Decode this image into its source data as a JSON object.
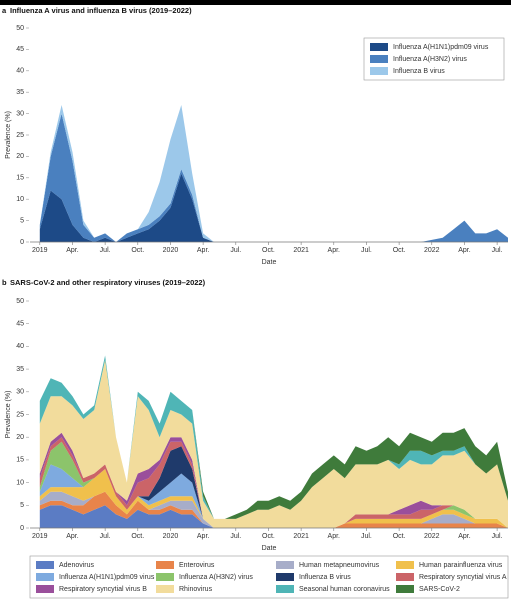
{
  "chart_data": [
    {
      "type": "area",
      "panel_label": "a",
      "title": "Influenza A virus and influenza B virus (2019–2022)",
      "xlabel": "Date",
      "ylabel": "Prevalence (%)",
      "stacked": true,
      "legend": "upper right",
      "x": [
        0,
        1,
        2,
        3,
        4,
        5,
        6,
        7,
        8,
        9,
        10,
        11,
        12,
        13,
        14,
        15,
        16,
        17,
        18,
        19,
        20,
        21,
        22,
        23,
        24,
        25,
        26,
        27,
        28,
        29,
        30,
        31,
        32,
        33,
        34,
        35,
        36,
        37,
        38,
        39,
        40,
        41,
        42,
        43
      ],
      "xlim": [
        -0.9,
        43
      ],
      "xticks": [
        {
          "value": 0,
          "label": "2019"
        },
        {
          "value": 3,
          "label": "Apr."
        },
        {
          "value": 6,
          "label": "Jul."
        },
        {
          "value": 9,
          "label": "Oct."
        },
        {
          "value": 12,
          "label": "2020"
        },
        {
          "value": 15,
          "label": "Apr."
        },
        {
          "value": 18,
          "label": "Jul."
        },
        {
          "value": 21,
          "label": "Oct."
        },
        {
          "value": 24,
          "label": "2021"
        },
        {
          "value": 27,
          "label": "Apr."
        },
        {
          "value": 30,
          "label": "Jul."
        },
        {
          "value": 33,
          "label": "Oct."
        },
        {
          "value": 36,
          "label": "2022"
        },
        {
          "value": 39,
          "label": "Apr."
        },
        {
          "value": 42,
          "label": "Jul."
        }
      ],
      "ylim": [
        0,
        50
      ],
      "yticks": [
        0,
        5,
        10,
        15,
        20,
        25,
        30,
        35,
        40,
        45,
        50
      ],
      "series": [
        {
          "name": "Influenza A(H1N1)pdm09 virus",
          "color": "#1d4a87",
          "values": [
            3,
            12,
            10,
            4,
            1,
            0,
            1,
            0,
            1,
            2,
            3,
            5,
            8,
            16,
            10,
            1,
            0,
            0,
            0,
            0,
            0,
            0,
            0,
            0,
            0,
            0,
            0,
            0,
            0,
            0,
            0,
            0,
            0,
            0,
            0,
            0,
            0,
            0,
            0,
            0,
            0,
            0,
            0,
            0
          ]
        },
        {
          "name": "Influenza A(H3N2) virus",
          "color": "#4a80bf",
          "values": [
            1,
            8,
            20,
            15,
            3,
            1,
            1,
            0,
            1,
            1,
            1,
            1,
            1,
            1,
            1,
            0,
            0,
            0,
            0,
            0,
            0,
            0,
            0,
            0,
            0,
            0,
            0,
            0,
            0,
            0,
            0,
            0,
            0,
            0,
            0,
            0,
            0.5,
            1,
            3,
            5,
            2,
            2,
            3,
            1
          ]
        },
        {
          "name": "Influenza B virus",
          "color": "#9cc8ea",
          "values": [
            0,
            1,
            2,
            2,
            1,
            0,
            0,
            0,
            0,
            0,
            3,
            8,
            15,
            15,
            5,
            1,
            0,
            0,
            0,
            0,
            0,
            0,
            0,
            0,
            0,
            0,
            0,
            0,
            0,
            0,
            0,
            0,
            0,
            0,
            0,
            0,
            0,
            0,
            0,
            0,
            0,
            0,
            0,
            0
          ]
        }
      ]
    },
    {
      "type": "area",
      "panel_label": "b",
      "title": "SARS-CoV-2 and other respiratory viruses (2019–2022)",
      "xlabel": "Date",
      "ylabel": "Prevalence (%)",
      "stacked": true,
      "legend": "below",
      "x": [
        0,
        1,
        2,
        3,
        4,
        5,
        6,
        7,
        8,
        9,
        10,
        11,
        12,
        13,
        14,
        15,
        16,
        17,
        18,
        19,
        20,
        21,
        22,
        23,
        24,
        25,
        26,
        27,
        28,
        29,
        30,
        31,
        32,
        33,
        34,
        35,
        36,
        37,
        38,
        39,
        40,
        41,
        42,
        43
      ],
      "xlim": [
        -0.9,
        43
      ],
      "xticks": [
        {
          "value": 0,
          "label": "2019"
        },
        {
          "value": 3,
          "label": "Apr."
        },
        {
          "value": 6,
          "label": "Jul."
        },
        {
          "value": 9,
          "label": "Oct."
        },
        {
          "value": 12,
          "label": "2020"
        },
        {
          "value": 15,
          "label": "Apr."
        },
        {
          "value": 18,
          "label": "Jul."
        },
        {
          "value": 21,
          "label": "Oct."
        },
        {
          "value": 24,
          "label": "2021"
        },
        {
          "value": 27,
          "label": "Apr."
        },
        {
          "value": 30,
          "label": "Jul."
        },
        {
          "value": 33,
          "label": "Oct."
        },
        {
          "value": 36,
          "label": "2022"
        },
        {
          "value": 39,
          "label": "Apr."
        },
        {
          "value": 42,
          "label": "Jul."
        }
      ],
      "ylim": [
        0,
        50
      ],
      "yticks": [
        0,
        5,
        10,
        15,
        20,
        25,
        30,
        35,
        40,
        45,
        50
      ],
      "series": [
        {
          "name": "Adenovirus",
          "color": "#5b7cc4",
          "values": [
            4,
            5,
            5,
            4,
            3,
            4,
            5,
            3,
            2,
            4,
            3,
            3,
            4,
            3,
            3,
            1,
            0,
            0,
            0,
            0,
            0,
            0,
            0,
            0,
            0,
            0,
            0,
            0,
            0,
            0,
            0,
            0,
            0,
            0,
            0,
            0,
            0,
            0,
            0,
            0,
            0,
            0,
            0,
            0
          ]
        },
        {
          "name": "Enterovirus",
          "color": "#e8844a",
          "values": [
            1,
            1,
            1,
            1,
            2,
            3,
            3,
            2,
            1,
            2,
            1,
            1,
            1,
            1,
            1,
            0,
            0,
            0,
            0,
            0,
            0,
            0,
            0,
            0,
            0,
            0,
            0,
            0,
            1,
            1,
            1,
            1,
            1,
            1,
            1,
            1,
            1,
            1,
            1,
            1,
            1,
            1,
            1,
            0
          ]
        },
        {
          "name": "Human metapneumovirus",
          "color": "#a7adc9",
          "values": [
            1,
            2,
            2,
            2,
            1,
            0,
            0,
            0,
            0,
            0,
            0,
            1,
            1,
            2,
            2,
            1,
            0,
            0,
            0,
            0,
            0,
            0,
            0,
            0,
            0,
            0,
            0,
            0,
            0,
            0,
            0,
            0,
            0,
            0,
            0,
            0,
            1,
            2,
            2,
            1,
            0,
            0,
            0,
            0
          ]
        },
        {
          "name": "Human parainfluenza virus",
          "color": "#f0c04c",
          "values": [
            1,
            1,
            1,
            2,
            3,
            4,
            5,
            2,
            1,
            1,
            1,
            1,
            1,
            1,
            1,
            0,
            0,
            0,
            0,
            0,
            0,
            0,
            0,
            0,
            0,
            0,
            0,
            0,
            0,
            1,
            1,
            1,
            1,
            1,
            1,
            1,
            1,
            1,
            1,
            1,
            1,
            1,
            1,
            0
          ]
        },
        {
          "name": "Influenza A(H1N1)pdm09 virus",
          "color": "#7eaadf",
          "values": [
            1,
            5,
            4,
            2,
            0,
            0,
            0,
            0,
            0,
            0,
            1,
            2,
            3,
            5,
            3,
            0,
            0,
            0,
            0,
            0,
            0,
            0,
            0,
            0,
            0,
            0,
            0,
            0,
            0,
            0,
            0,
            0,
            0,
            0,
            0,
            0,
            0,
            0,
            0,
            0,
            0,
            0,
            0,
            0
          ]
        },
        {
          "name": "Influenza A(H3N2) virus",
          "color": "#8cc46b",
          "values": [
            1,
            3,
            6,
            4,
            1,
            0,
            0,
            0,
            0,
            0,
            0,
            0,
            0,
            0,
            0,
            0,
            0,
            0,
            0,
            0,
            0,
            0,
            0,
            0,
            0,
            0,
            0,
            0,
            0,
            0,
            0,
            0,
            0,
            0,
            0,
            0,
            0,
            0,
            1,
            1,
            0,
            0,
            0,
            0
          ]
        },
        {
          "name": "Influenza B virus",
          "color": "#1f3a6b",
          "values": [
            0,
            0,
            0,
            0,
            0,
            0,
            0,
            0,
            0,
            0,
            1,
            3,
            7,
            6,
            3,
            0,
            0,
            0,
            0,
            0,
            0,
            0,
            0,
            0,
            0,
            0,
            0,
            0,
            0,
            0,
            0,
            0,
            0,
            0,
            0,
            0,
            0,
            0,
            0,
            0,
            0,
            0,
            0,
            0
          ]
        },
        {
          "name": "Respiratory syncytial virus A",
          "color": "#cb6468",
          "values": [
            2,
            1,
            1,
            1,
            1,
            1,
            1,
            1,
            1,
            3,
            4,
            3,
            2,
            1,
            1,
            0,
            0,
            0,
            0,
            0,
            0,
            0,
            0,
            0,
            0,
            0,
            0,
            0,
            0,
            1,
            1,
            1,
            1,
            1,
            1,
            2,
            1,
            1,
            0,
            0,
            0,
            0,
            0,
            0
          ]
        },
        {
          "name": "Respiratory syncytial virus B",
          "color": "#9a4f9b",
          "values": [
            1,
            1,
            1,
            1,
            0,
            0,
            0,
            0,
            1,
            2,
            2,
            1,
            1,
            1,
            1,
            0,
            0,
            0,
            0,
            0,
            0,
            0,
            0,
            0,
            0,
            0,
            0,
            0,
            0,
            0,
            0,
            0,
            0,
            1,
            2,
            2,
            1,
            0,
            0,
            0,
            0,
            0,
            0,
            0
          ]
        },
        {
          "name": "Rhinovirus",
          "color": "#f2dc9c",
          "values": [
            11,
            10,
            8,
            10,
            13,
            14,
            23,
            12,
            4,
            17,
            13,
            5,
            6,
            5,
            8,
            4,
            2,
            2,
            2,
            3,
            4,
            4,
            5,
            4,
            6,
            9,
            11,
            13,
            10,
            11,
            11,
            11,
            12,
            9,
            10,
            8,
            9,
            11,
            11,
            13,
            12,
            10,
            12,
            6
          ]
        },
        {
          "name": "Seasonal human coronavirus",
          "color": "#4fb5b6",
          "values": [
            5,
            4,
            3,
            2,
            1,
            1,
            1,
            0,
            0,
            1,
            2,
            3,
            4,
            3,
            3,
            1,
            0,
            0,
            0,
            0,
            0,
            0,
            0,
            0,
            0,
            0,
            0,
            0,
            0,
            0,
            0,
            0,
            0,
            1,
            2,
            3,
            2,
            1,
            1,
            1,
            0,
            0,
            0,
            0
          ]
        },
        {
          "name": "SARS-CoV-2",
          "color": "#3f7b3b",
          "values": [
            0,
            0,
            0,
            0,
            0,
            0,
            0,
            0,
            0,
            0,
            0,
            0,
            0,
            0,
            0,
            1,
            0,
            0,
            1,
            1,
            2,
            2,
            2,
            2,
            2,
            3,
            3,
            3,
            3,
            4,
            3,
            4,
            5,
            4,
            4,
            3,
            3,
            4,
            4,
            4,
            4,
            4,
            5,
            2
          ]
        }
      ]
    }
  ]
}
